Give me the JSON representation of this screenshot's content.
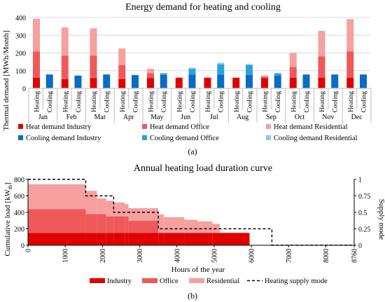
{
  "colors": {
    "heat_industry": "#e00000",
    "heat_office": "#ee5a5a",
    "heat_residential": "#f6a0a0",
    "cool_industry": "#0a6cc4",
    "cool_office": "#2aa3d8",
    "cool_residential": "#8fc9ea",
    "gridline": "#d9d9d9"
  },
  "chart_data": [
    {
      "type": "bar",
      "title": "Energy demand for heating and cooling",
      "ylabel": "Thermal demand [MWh/Month]",
      "ylim": [
        0,
        400
      ],
      "yticks": [
        0,
        100,
        200,
        300,
        400
      ],
      "grid": true,
      "legend_position": "bottom",
      "months": [
        "Jan",
        "Feb",
        "Mar",
        "Apr",
        "May",
        "Jun",
        "Jul",
        "Aug",
        "Sep",
        "Oct",
        "Nov",
        "Dec"
      ],
      "bar_labels": [
        "Heating",
        "Cooling"
      ],
      "series": [
        {
          "name": "Heat demand Industry",
          "group": "Heating",
          "values": [
            60,
            52,
            58,
            52,
            58,
            60,
            60,
            60,
            58,
            60,
            60,
            60
          ]
        },
        {
          "name": "Heat demand Office",
          "group": "Heating",
          "values": [
            148,
            132,
            126,
            80,
            27,
            0,
            0,
            0,
            7,
            60,
            120,
            148
          ]
        },
        {
          "name": "Heat demand Residential",
          "group": "Heating",
          "values": [
            185,
            160,
            155,
            93,
            25,
            0,
            0,
            0,
            8,
            80,
            145,
            183
          ]
        },
        {
          "name": "Cooling demand Industry",
          "group": "Cooling",
          "values": [
            78,
            72,
            78,
            74,
            76,
            78,
            78,
            76,
            72,
            78,
            78,
            78
          ]
        },
        {
          "name": "Cooling demand Office",
          "group": "Cooling",
          "values": [
            0,
            0,
            0,
            2,
            8,
            32,
            58,
            55,
            12,
            0,
            0,
            0
          ]
        },
        {
          "name": "Cooling demand Residential",
          "group": "Cooling",
          "values": [
            0,
            0,
            0,
            0,
            3,
            6,
            8,
            6,
            3,
            0,
            0,
            0
          ]
        }
      ],
      "caption": "(a)"
    },
    {
      "type": "area",
      "title": "Annual heating load duration curve",
      "xlabel": "Hours of the year",
      "ylabel": "Cumulative load [kWth]",
      "ylabel_main": "Cumulative load [kW",
      "ylabel_sub": "th",
      "ylabel_end": "]",
      "y2label": "Supply mode",
      "xlim": [
        0,
        8760
      ],
      "ylim": [
        0,
        800
      ],
      "y2lim": [
        0,
        1
      ],
      "xticks": [
        0,
        1000,
        2000,
        3000,
        4000,
        5000,
        6000,
        7000,
        8000,
        8760
      ],
      "yticks": [
        0,
        200,
        400,
        600,
        800
      ],
      "y2ticks": [
        0,
        0.25,
        0.5,
        0.75,
        1
      ],
      "y2tick_labels": [
        "0",
        "0.25",
        "0.5",
        "0.75",
        "1"
      ],
      "legend_position": "bottom",
      "series": [
        {
          "name": "Industry",
          "steps": [
            [
              0,
              150
            ],
            [
              5950,
              150
            ]
          ]
        },
        {
          "name": "Office",
          "steps": [
            [
              0,
              290
            ],
            [
              1550,
              230
            ],
            [
              2100,
              200
            ],
            [
              2700,
              150
            ],
            [
              3500,
              0
            ]
          ]
        },
        {
          "name": "Residential",
          "steps": [
            [
              0,
              300
            ],
            [
              1550,
              280
            ],
            [
              1850,
              190
            ],
            [
              2300,
              170
            ],
            [
              2600,
              150
            ],
            [
              3500,
              225
            ],
            [
              3650,
              190
            ],
            [
              4200,
              160
            ],
            [
              4550,
              140
            ],
            [
              4950,
              110
            ],
            [
              5150,
              0
            ]
          ]
        },
        {
          "name": "Heating supply mode",
          "steps": [
            [
              0,
              1
            ],
            [
              1550,
              0.75
            ],
            [
              2300,
              0.5
            ],
            [
              3500,
              0.25
            ],
            [
              6550,
              0
            ],
            [
              8760,
              0
            ]
          ]
        }
      ],
      "caption": "(b)"
    }
  ]
}
